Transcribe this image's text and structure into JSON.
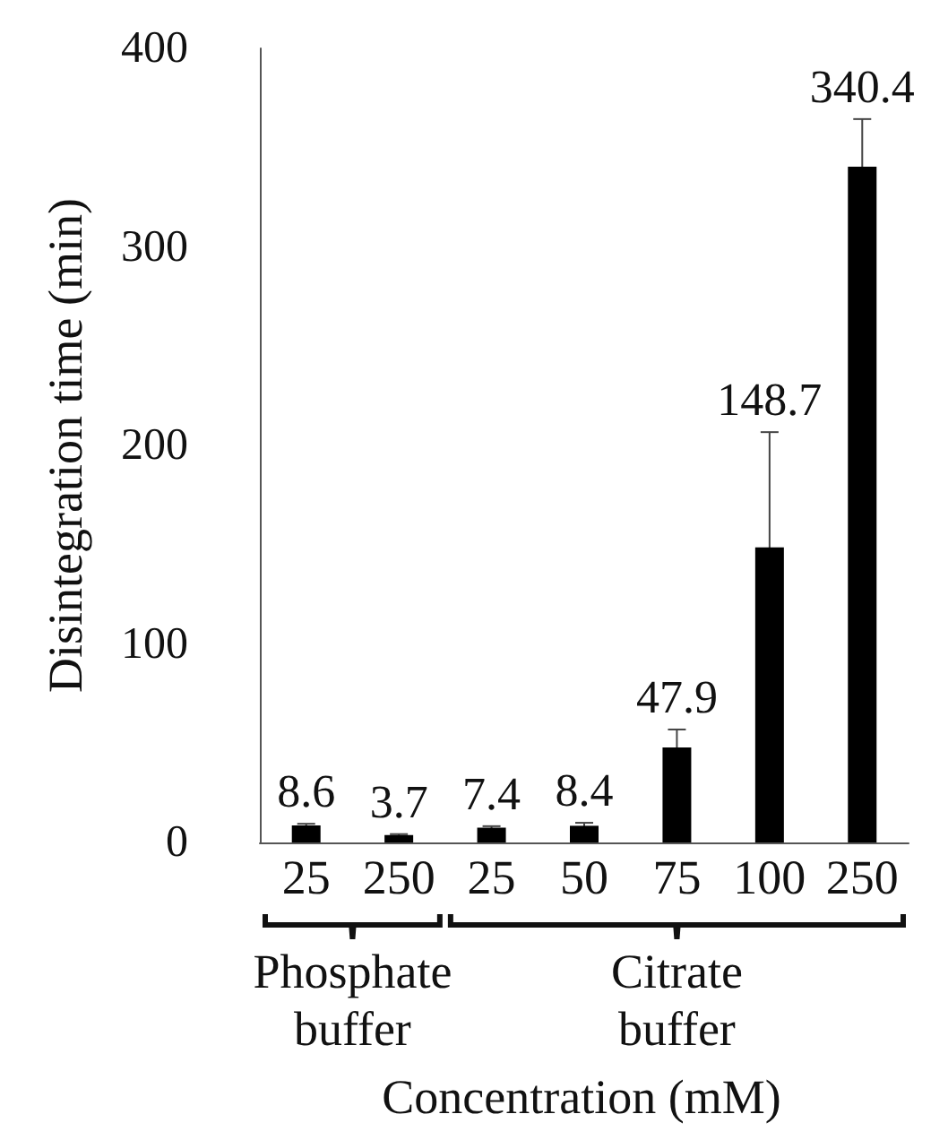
{
  "chart_data": {
    "type": "bar",
    "ylabel": "Disintegration time (min)",
    "xlabel": "Concentration (mM)",
    "categories": [
      "25",
      "250",
      "25",
      "50",
      "75",
      "100",
      "250"
    ],
    "values": [
      8.6,
      3.7,
      7.4,
      8.4,
      47.9,
      148.7,
      340.4
    ],
    "errors": [
      0.8,
      0.5,
      0.8,
      1.5,
      9,
      58,
      24
    ],
    "color": "#000000",
    "ylim": [
      0,
      400
    ],
    "yticks": [
      0,
      100,
      200,
      300,
      400
    ],
    "data_labels": true,
    "grid": false,
    "annotations": [
      "Phosphate buffer",
      "Citrate buffer"
    ]
  }
}
